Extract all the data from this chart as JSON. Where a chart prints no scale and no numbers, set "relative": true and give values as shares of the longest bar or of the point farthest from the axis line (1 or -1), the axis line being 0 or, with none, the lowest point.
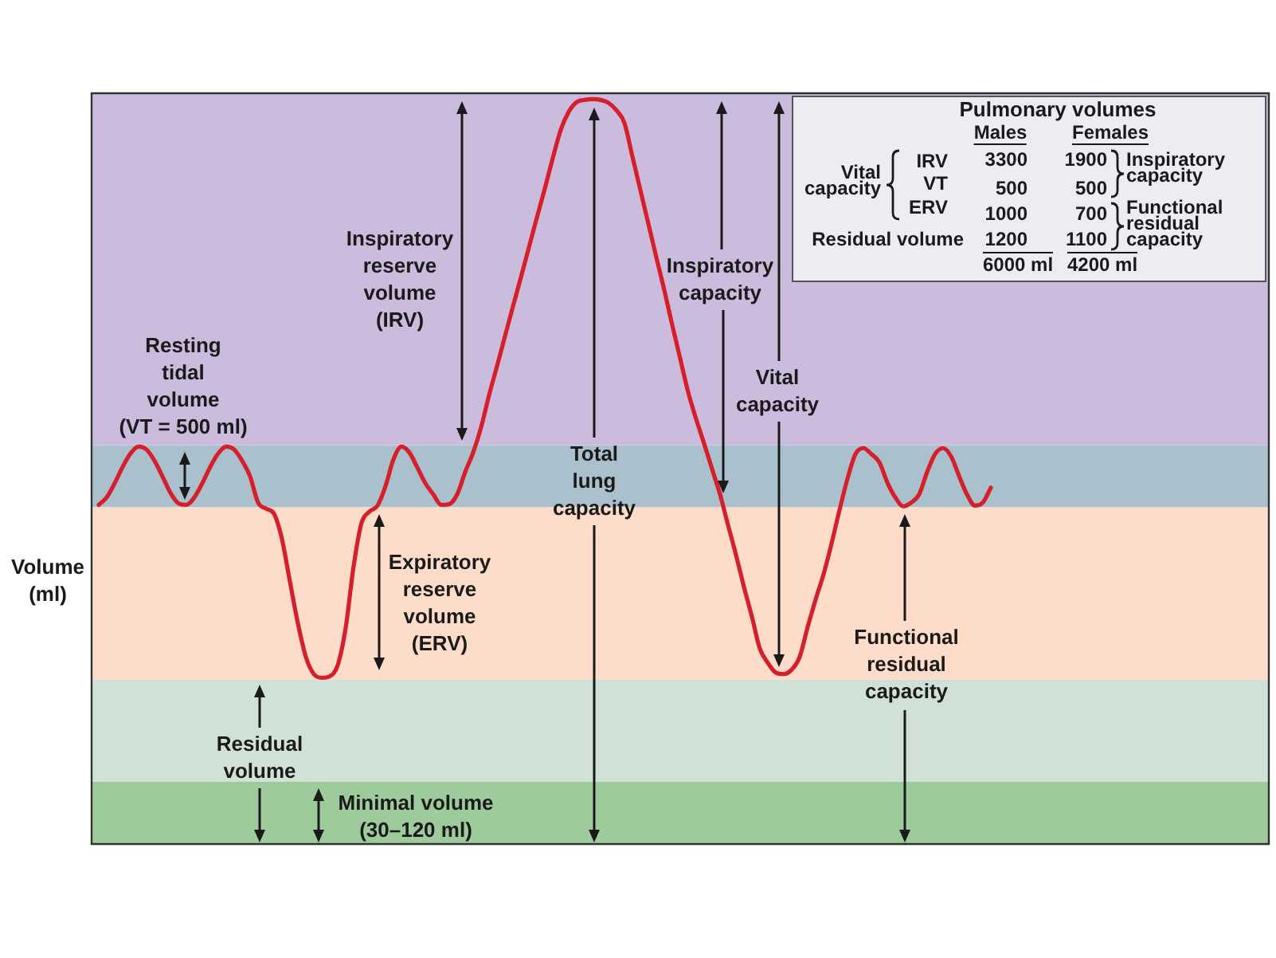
{
  "chart_data": {
    "type": "line",
    "relative": true,
    "ylabel": "Volume (ml)",
    "categories": [
      null,
      null,
      null,
      null,
      null,
      null,
      null,
      null,
      null,
      null,
      null,
      null,
      null,
      null,
      null,
      null,
      null,
      null,
      null,
      null,
      null,
      null,
      null,
      null,
      null,
      null,
      null,
      null,
      null,
      null,
      null,
      null,
      null,
      null,
      null,
      null,
      null,
      null,
      null,
      null,
      null,
      null,
      null,
      null,
      null,
      null,
      null,
      null,
      null,
      null,
      null,
      null,
      null,
      null,
      null,
      null,
      null,
      null,
      null,
      null,
      null,
      null,
      null,
      null,
      null,
      null,
      null,
      null,
      null,
      null,
      null,
      null,
      null,
      null,
      null,
      null,
      null,
      null,
      null,
      null,
      null,
      null,
      null,
      null,
      null,
      null,
      null,
      null,
      null,
      null,
      null,
      null,
      null,
      null,
      null,
      null,
      null,
      null,
      null,
      null,
      null,
      null,
      null,
      null,
      null,
      null,
      null,
      null,
      null,
      null,
      null,
      null,
      null,
      null,
      null,
      null,
      null,
      null,
      null,
      null,
      null,
      null,
      null,
      null,
      null,
      null,
      null,
      null,
      null,
      null,
      null,
      null,
      null,
      null,
      null,
      null,
      null,
      null,
      null,
      null,
      null,
      null,
      null,
      null,
      null,
      null,
      null,
      null,
      null
    ],
    "color": "#d51f2a",
    "values": [
      null,
      0.456,
      0.466,
      0.485,
      0.507,
      0.525,
      0.534,
      0.53,
      0.515,
      0.494,
      0.472,
      0.458,
      0.456,
      0.466,
      0.485,
      0.507,
      0.525,
      0.534,
      0.53,
      0.515,
      0.494,
      0.459,
      0.451,
      0.444,
      0.41,
      0.353,
      0.297,
      0.252,
      0.229,
      0.224,
      0.226,
      0.241,
      0.291,
      0.374,
      0.432,
      0.447,
      0.455,
      0.481,
      0.517,
      0.534,
      0.526,
      0.506,
      0.485,
      0.47,
      0.456,
      0.457,
      0.47,
      0.5,
      0.526,
      0.56,
      0.603,
      0.642,
      0.682,
      0.722,
      0.761,
      0.801,
      0.841,
      0.88,
      0.921,
      0.959,
      0.983,
      0.996,
      0.999,
      1,
      0.999,
      0.995,
      0.985,
      0.968,
      0.923,
      0.878,
      0.833,
      0.788,
      0.744,
      0.697,
      0.652,
      0.607,
      0.571,
      0.538,
      0.504,
      0.47,
      0.429,
      0.389,
      0.346,
      0.306,
      0.263,
      0.244,
      0.231,
      0.229,
      0.235,
      0.252,
      0.292,
      0.329,
      0.363,
      0.404,
      0.449,
      0.491,
      0.524,
      0.532,
      0.524,
      0.513,
      0.486,
      0.466,
      0.454,
      0.459,
      0.47,
      0.5,
      0.524,
      0.532,
      0.521,
      0.495,
      0.47,
      0.455,
      0.459,
      0.479,
      null,
      null,
      null,
      null,
      null,
      null,
      null,
      null,
      null,
      null,
      null,
      null,
      null,
      null,
      null,
      null,
      null,
      null,
      null,
      null,
      null,
      null,
      null,
      null,
      null,
      null,
      null,
      null,
      null,
      null,
      null,
      null,
      null,
      null,
      null
    ],
    "bands": [
      {
        "axis": "y",
        "from": 0,
        "to": 0.085,
        "color": "#9ecb9c"
      },
      {
        "axis": "y",
        "from": 0.085,
        "to": 0.222,
        "color": "#d0e2d7"
      },
      {
        "axis": "y",
        "from": 0.222,
        "to": 0.453,
        "color": "#fddcc9"
      },
      {
        "axis": "y",
        "from": 0.453,
        "to": 0.536,
        "color": "#aac0cc"
      },
      {
        "axis": "y",
        "from": 0.536,
        "to": 1.009,
        "color": "#cbbbdc"
      }
    ],
    "annotations": [
      "Resting tidal volume (VT = 500 ml)",
      "Inspiratory reserve volume (IRV)",
      "Expiratory reserve volume (ERV)",
      "Residual volume",
      "Minimal volume (30–120 ml)",
      "Total lung capacity",
      "Inspiratory capacity",
      "Vital capacity",
      "Functional residual capacity",
      "Pulmonary volumes",
      "Males",
      "Females",
      "Vital capacity",
      "IRV",
      "VT",
      "ERV",
      "Residual volume",
      "3300",
      "500",
      "1000",
      "1200",
      "6000 ml",
      "1900",
      "500",
      "700",
      "1100",
      "4200 ml",
      "Inspiratory capacity",
      "Functional residual capacity"
    ],
    "grid": false,
    "legend": false,
    "tick_labels": false,
    "marker": "none",
    "line_style": "solid"
  }
}
